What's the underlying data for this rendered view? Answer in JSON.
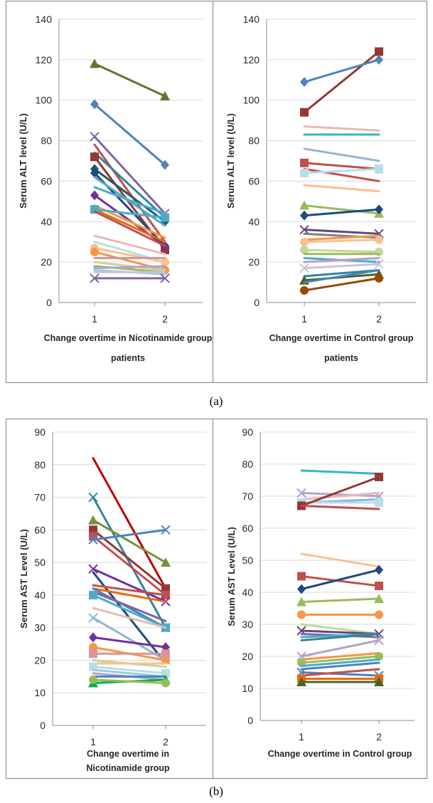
{
  "panel_labels": {
    "a": "(a)",
    "b": "(b)"
  },
  "colors": [
    "#4472c4",
    "#c0504d",
    "#9bbb59",
    "#8064a2",
    "#4bacc6",
    "#f79646",
    "#2c4d75",
    "#772c2a",
    "#5f7530",
    "#4d3b62",
    "#276a7c",
    "#b65708",
    "#729aca",
    "#d99694",
    "#c3d69b",
    "#b3a2c7",
    "#93cddd",
    "#fac090"
  ],
  "chart_data": [
    {
      "type": "line",
      "title": "",
      "xlabel": "Change overtime in Nicotinamide group patients",
      "ylabel": "Serum ALT level (U/L)",
      "categories": [
        "1",
        "2"
      ],
      "ylim": [
        0,
        140
      ],
      "yticks": [
        0,
        20,
        40,
        60,
        80,
        100,
        120,
        140
      ],
      "series": [
        {
          "values": [
            118,
            102
          ],
          "color": "#5f7530",
          "marker": "triangle"
        },
        {
          "values": [
            98,
            68
          ],
          "color": "#4f81bd",
          "marker": "diamond"
        },
        {
          "values": [
            82,
            44
          ],
          "color": "#8064a2",
          "marker": "x"
        },
        {
          "values": [
            78,
            30
          ],
          "color": "#c0504d",
          "marker": "none"
        },
        {
          "values": [
            74,
            42
          ],
          "color": "#31859c",
          "marker": "none"
        },
        {
          "values": [
            72,
            26
          ],
          "color": "#953735",
          "marker": "square"
        },
        {
          "values": [
            66,
            40
          ],
          "color": "#215968",
          "marker": "diamond"
        },
        {
          "values": [
            64,
            28
          ],
          "color": "#1f497d",
          "marker": "diamond"
        },
        {
          "values": [
            62,
            38
          ],
          "color": "#4bacc6",
          "marker": "none"
        },
        {
          "values": [
            57,
            44
          ],
          "color": "#4bacc6",
          "marker": "none"
        },
        {
          "values": [
            53,
            28
          ],
          "color": "#7030a0",
          "marker": "diamond"
        },
        {
          "values": [
            48,
            32
          ],
          "color": "#f79646",
          "marker": "none"
        },
        {
          "values": [
            46,
            30
          ],
          "color": "#e46c0a",
          "marker": "none"
        },
        {
          "values": [
            46,
            42
          ],
          "color": "#4bacc6",
          "marker": "square"
        },
        {
          "values": [
            45,
            28
          ],
          "color": "#c0504d",
          "marker": "none"
        },
        {
          "values": [
            33,
            24
          ],
          "color": "#e6b9b8",
          "marker": "none"
        },
        {
          "values": [
            30,
            20
          ],
          "color": "#b7dee8",
          "marker": "none"
        },
        {
          "values": [
            27,
            20
          ],
          "color": "#fac090",
          "marker": "circle"
        },
        {
          "values": [
            25,
            16
          ],
          "color": "#f79646",
          "marker": "circle"
        },
        {
          "values": [
            22,
            22
          ],
          "color": "#d99694",
          "marker": "none"
        },
        {
          "values": [
            20,
            16
          ],
          "color": "#c3d69b",
          "marker": "none"
        },
        {
          "values": [
            18,
            15
          ],
          "color": "#9bbb59",
          "marker": "none"
        },
        {
          "values": [
            17,
            18
          ],
          "color": "#b3a2c7",
          "marker": "none"
        },
        {
          "values": [
            16,
            14
          ],
          "color": "#93cddd",
          "marker": "none"
        },
        {
          "values": [
            15,
            15
          ],
          "color": "#ccc1da",
          "marker": "none"
        },
        {
          "values": [
            12,
            12
          ],
          "color": "#8064a2",
          "marker": "x"
        }
      ]
    },
    {
      "type": "line",
      "title": "",
      "xlabel": "Change overtime in Control group patients",
      "ylabel": "Serum ALT level (U/L)",
      "categories": [
        "1",
        "2"
      ],
      "ylim": [
        0,
        140
      ],
      "yticks": [
        0,
        20,
        40,
        60,
        80,
        100,
        120,
        140
      ],
      "series": [
        {
          "values": [
            94,
            124
          ],
          "color": "#953735",
          "marker": "square"
        },
        {
          "values": [
            109,
            120
          ],
          "color": "#4f81bd",
          "marker": "diamond"
        },
        {
          "values": [
            87,
            85
          ],
          "color": "#e6b9b8",
          "marker": "none"
        },
        {
          "values": [
            83,
            83
          ],
          "color": "#31b7c9",
          "marker": "none"
        },
        {
          "values": [
            76,
            70
          ],
          "color": "#95b3d7",
          "marker": "none"
        },
        {
          "values": [
            69,
            66
          ],
          "color": "#c0504d",
          "marker": "square"
        },
        {
          "values": [
            66,
            60
          ],
          "color": "#c0504d",
          "marker": "none"
        },
        {
          "values": [
            64,
            66
          ],
          "color": "#b7dee8",
          "marker": "square"
        },
        {
          "values": [
            58,
            55
          ],
          "color": "#fac090",
          "marker": "none"
        },
        {
          "values": [
            48,
            44
          ],
          "color": "#9bbb59",
          "marker": "triangle"
        },
        {
          "values": [
            43,
            46
          ],
          "color": "#1f497d",
          "marker": "diamond"
        },
        {
          "values": [
            36,
            34
          ],
          "color": "#604a7b",
          "marker": "x"
        },
        {
          "values": [
            34,
            32
          ],
          "color": "#7f7f7f",
          "marker": "none"
        },
        {
          "values": [
            31,
            33
          ],
          "color": "#f79646",
          "marker": "none"
        },
        {
          "values": [
            30,
            31
          ],
          "color": "#fac090",
          "marker": "circle"
        },
        {
          "values": [
            26,
            25
          ],
          "color": "#c3d69b",
          "marker": "circle"
        },
        {
          "values": [
            24,
            24
          ],
          "color": "#9bbb59",
          "marker": "none"
        },
        {
          "values": [
            22,
            20
          ],
          "color": "#4bacc6",
          "marker": "none"
        },
        {
          "values": [
            20,
            22
          ],
          "color": "#b3a2c7",
          "marker": "none"
        },
        {
          "values": [
            17,
            19
          ],
          "color": "#ccc1da",
          "marker": "x"
        },
        {
          "values": [
            13,
            16
          ],
          "color": "#31859c",
          "marker": "none"
        },
        {
          "values": [
            11,
            14
          ],
          "color": "#4f6228",
          "marker": "triangle"
        },
        {
          "values": [
            10,
            16
          ],
          "color": "#4f81bd",
          "marker": "none"
        },
        {
          "values": [
            6,
            12
          ],
          "color": "#984807",
          "marker": "circle"
        }
      ]
    },
    {
      "type": "line",
      "title": "",
      "xlabel": "Change overtime in Nicotinamide group",
      "ylabel": "Serum AST Level (U/L)",
      "categories": [
        "1",
        "2"
      ],
      "ylim": [
        0,
        90
      ],
      "yticks": [
        0,
        10,
        20,
        30,
        40,
        50,
        60,
        70,
        80,
        90
      ],
      "series": [
        {
          "values": [
            82,
            42
          ],
          "color": "#c00000",
          "marker": "none"
        },
        {
          "values": [
            70,
            30
          ],
          "color": "#31859c",
          "marker": "x"
        },
        {
          "values": [
            63,
            50
          ],
          "color": "#76923c",
          "marker": "triangle"
        },
        {
          "values": [
            60,
            42
          ],
          "color": "#953735",
          "marker": "square"
        },
        {
          "values": [
            58,
            40
          ],
          "color": "#c0504d",
          "marker": "square"
        },
        {
          "values": [
            57,
            60
          ],
          "color": "#4f81bd",
          "marker": "x"
        },
        {
          "values": [
            48,
            38
          ],
          "color": "#7030a0",
          "marker": "x"
        },
        {
          "values": [
            47,
            19
          ],
          "color": "#1f497d",
          "marker": "none"
        },
        {
          "values": [
            43,
            40
          ],
          "color": "#c0504d",
          "marker": "none"
        },
        {
          "values": [
            42,
            38
          ],
          "color": "#e46c0a",
          "marker": "none"
        },
        {
          "values": [
            42,
            30
          ],
          "color": "#4f81bd",
          "marker": "none"
        },
        {
          "values": [
            41,
            32
          ],
          "color": "#8064a2",
          "marker": "none"
        },
        {
          "values": [
            40,
            30
          ],
          "color": "#4bacc6",
          "marker": "square"
        },
        {
          "values": [
            36,
            30
          ],
          "color": "#e6b9b8",
          "marker": "none"
        },
        {
          "values": [
            33,
            20
          ],
          "color": "#95b3d7",
          "marker": "x"
        },
        {
          "values": [
            27,
            24
          ],
          "color": "#7030a0",
          "marker": "diamond"
        },
        {
          "values": [
            24,
            20
          ],
          "color": "#f79646",
          "marker": "circle"
        },
        {
          "values": [
            22,
            22
          ],
          "color": "#d99694",
          "marker": "square"
        },
        {
          "values": [
            20,
            18
          ],
          "color": "#c3d69b",
          "marker": "none"
        },
        {
          "values": [
            19,
            19
          ],
          "color": "#fac090",
          "marker": "none"
        },
        {
          "values": [
            18,
            16
          ],
          "color": "#b7dee8",
          "marker": "square"
        },
        {
          "values": [
            17,
            15
          ],
          "color": "#93cddd",
          "marker": "none"
        },
        {
          "values": [
            16,
            14
          ],
          "color": "#b3a2c7",
          "marker": "none"
        },
        {
          "values": [
            15,
            15
          ],
          "color": "#4f81bd",
          "marker": "none"
        },
        {
          "values": [
            13,
            14
          ],
          "color": "#00b050",
          "marker": "triangle"
        },
        {
          "values": [
            14,
            13
          ],
          "color": "#9bbb59",
          "marker": "circle"
        }
      ]
    },
    {
      "type": "line",
      "title": "",
      "xlabel": "Change overtime in Control group",
      "ylabel": "Serum AST Level (U/L)",
      "categories": [
        "1",
        "2"
      ],
      "ylim": [
        0,
        90
      ],
      "yticks": [
        0,
        10,
        20,
        30,
        40,
        50,
        60,
        70,
        80,
        90
      ],
      "series": [
        {
          "values": [
            78,
            77
          ],
          "color": "#31b7c9",
          "marker": "none"
        },
        {
          "values": [
            71,
            70
          ],
          "color": "#b3a2c7",
          "marker": "x"
        },
        {
          "values": [
            69,
            71
          ],
          "color": "#e6b9b8",
          "marker": "none"
        },
        {
          "values": [
            68,
            69
          ],
          "color": "#8db3e2",
          "marker": "none"
        },
        {
          "values": [
            68,
            68
          ],
          "color": "#b7dee8",
          "marker": "square"
        },
        {
          "values": [
            67,
            76
          ],
          "color": "#953735",
          "marker": "square"
        },
        {
          "values": [
            67,
            66
          ],
          "color": "#c0504d",
          "marker": "none"
        },
        {
          "values": [
            52,
            48
          ],
          "color": "#fac090",
          "marker": "none"
        },
        {
          "values": [
            45,
            42
          ],
          "color": "#c0504d",
          "marker": "square"
        },
        {
          "values": [
            41,
            47
          ],
          "color": "#1f497d",
          "marker": "diamond"
        },
        {
          "values": [
            37,
            38
          ],
          "color": "#9bbb59",
          "marker": "triangle"
        },
        {
          "values": [
            33,
            33
          ],
          "color": "#f79646",
          "marker": "circle"
        },
        {
          "values": [
            30,
            27
          ],
          "color": "#c3d69b",
          "marker": "none"
        },
        {
          "values": [
            28,
            27
          ],
          "color": "#604a7b",
          "marker": "x"
        },
        {
          "values": [
            27,
            26
          ],
          "color": "#8064a2",
          "marker": "none"
        },
        {
          "values": [
            26,
            27
          ],
          "color": "#4bacc6",
          "marker": "none"
        },
        {
          "values": [
            25,
            27
          ],
          "color": "#31859c",
          "marker": "none"
        },
        {
          "values": [
            20,
            25
          ],
          "color": "#b3a2c7",
          "marker": "x"
        },
        {
          "values": [
            19,
            21
          ],
          "color": "#f79646",
          "marker": "none"
        },
        {
          "values": [
            18,
            20
          ],
          "color": "#9bbb59",
          "marker": "circle"
        },
        {
          "values": [
            17,
            19
          ],
          "color": "#4bacc6",
          "marker": "none"
        },
        {
          "values": [
            16,
            18
          ],
          "color": "#4f81bd",
          "marker": "none"
        },
        {
          "values": [
            15,
            14
          ],
          "color": "#4f81bd",
          "marker": "x"
        },
        {
          "values": [
            14,
            16
          ],
          "color": "#c0504d",
          "marker": "none"
        },
        {
          "values": [
            13,
            13
          ],
          "color": "#e46c0a",
          "marker": "square"
        },
        {
          "values": [
            12,
            12
          ],
          "color": "#4f6228",
          "marker": "triangle"
        }
      ]
    }
  ]
}
